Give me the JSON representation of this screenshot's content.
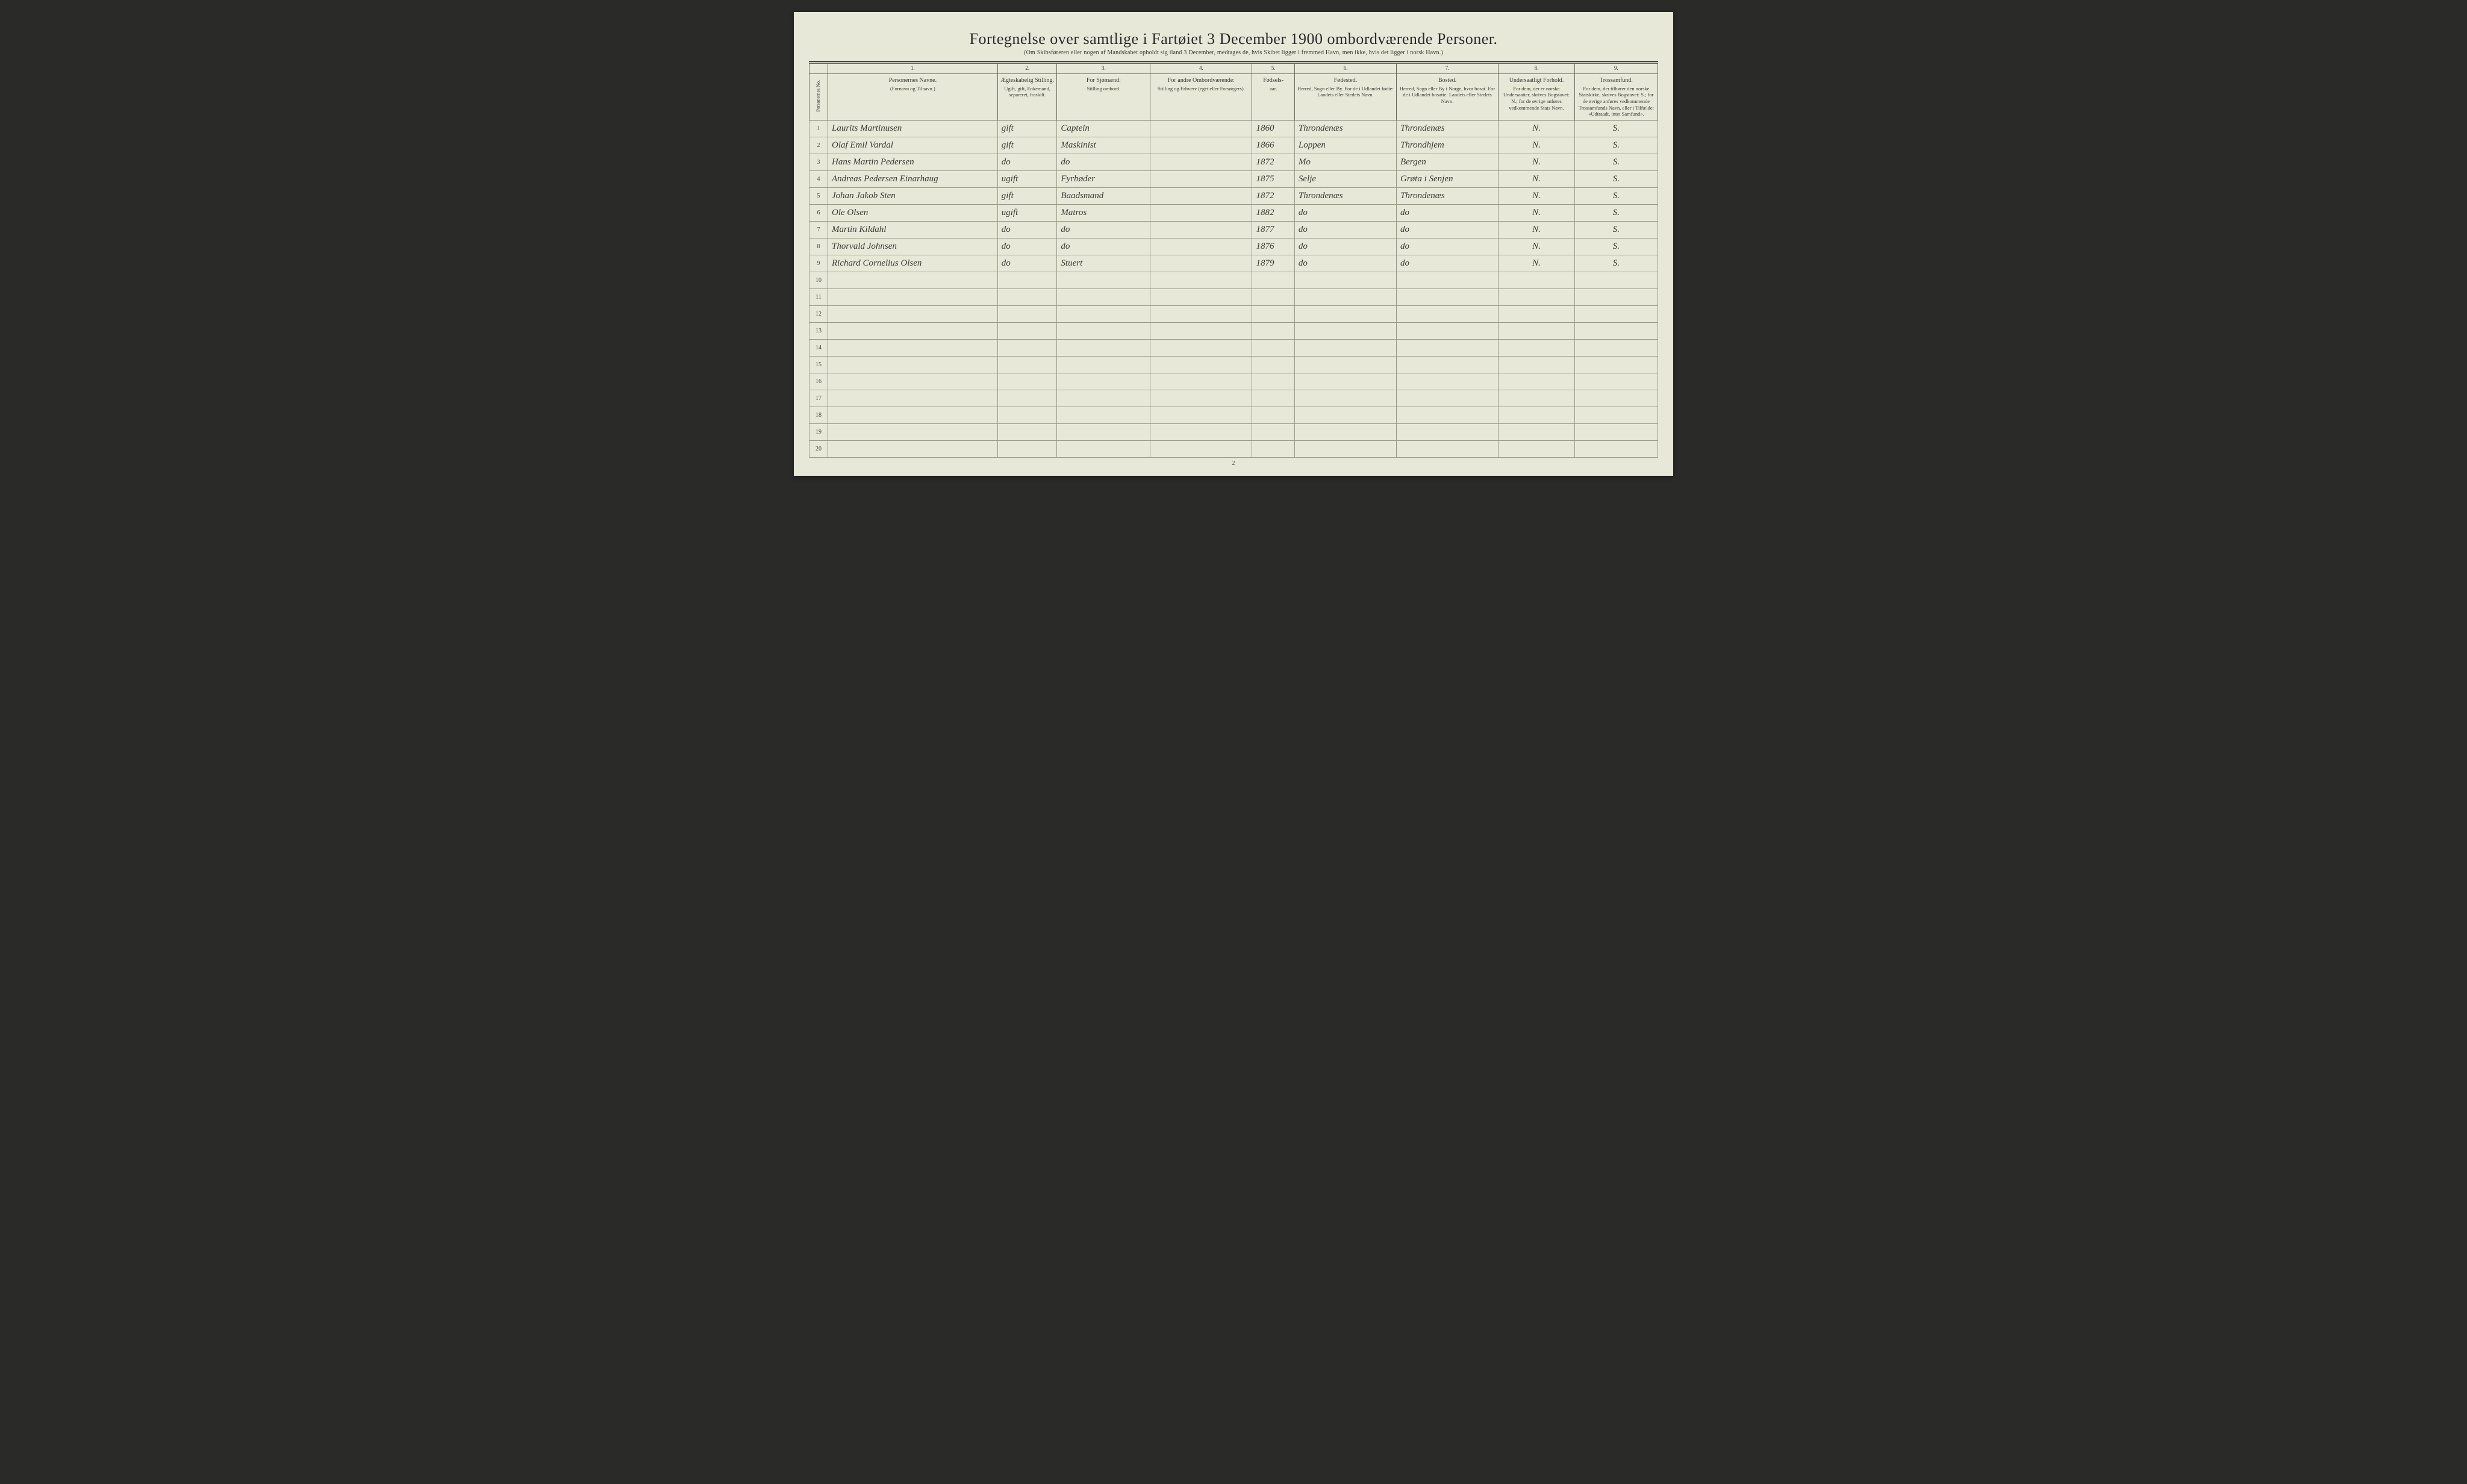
{
  "title": "Fortegnelse over samtlige i Fartøiet 3 December 1900 ombordværende Personer.",
  "subtitle": "(Om Skibsføreren eller nogen af Mandskabet opholdt sig iland 3 December, medtages de, hvis Skibet ligger i fremmed Havn, men ikke, hvis det ligger i norsk Havn.)",
  "page_number": "2",
  "columns": {
    "num_label": "Personernes No.",
    "c1": {
      "num": "1.",
      "main": "Personernes Navne.",
      "sub": "(Fornavn og Tilnavn.)"
    },
    "c2": {
      "num": "2.",
      "main": "Ægteskabelig Stilling.",
      "sub": "Ugift, gift, Enkemand, separeret, fraskilt."
    },
    "c3": {
      "num": "3.",
      "main": "For Sjømænd:",
      "sub": "Stilling ombord."
    },
    "c4": {
      "num": "4.",
      "main": "For andre Ombordværende:",
      "sub": "Stilling og Erhverv (eget eller Forsørgers)."
    },
    "c5": {
      "num": "5.",
      "main": "Fødsels-",
      "sub": "aar."
    },
    "c6": {
      "num": "6.",
      "main": "Fødested.",
      "sub": "Herred, Sogn eller By. For de i Udlandet fødte: Landets eller Stedets Navn."
    },
    "c7": {
      "num": "7.",
      "main": "Bosted.",
      "sub": "Herred, Sogn eller By i Norge, hvor bosat. For de i Udlandet bosatte: Landets eller Stedets Navn."
    },
    "c8": {
      "num": "8.",
      "main": "Undersaatligt Forhold.",
      "sub": "For dem, der er norske Undersaatter, skrives Bogstavet: N.; for de øvrige anføres vedkommende Stats Navn."
    },
    "c9": {
      "num": "9.",
      "main": "Trossamfund.",
      "sub": "For dem, der tilhører den norske Statskirke, skrives Bogstavet: S.; for de øvrige anføres vedkommende Trossamfunds Navn, eller i Tilfælde: «Udtraadt, intet Samfund»."
    }
  },
  "rows": [
    {
      "n": "1",
      "name": "Laurits Martinusen",
      "marital": "gift",
      "seaman": "Captein",
      "other": "",
      "birth": "1860",
      "birthplace": "Throndenæs",
      "residence": "Throndenæs",
      "subject": "N.",
      "religion": "S."
    },
    {
      "n": "2",
      "name": "Olaf Emil Vardal",
      "marital": "gift",
      "seaman": "Maskinist",
      "other": "",
      "birth": "1866",
      "birthplace": "Loppen",
      "residence": "Throndhjem",
      "subject": "N.",
      "religion": "S."
    },
    {
      "n": "3",
      "name": "Hans Martin Pedersen",
      "marital": "do",
      "seaman": "do",
      "other": "",
      "birth": "1872",
      "birthplace": "Mo",
      "residence": "Bergen",
      "subject": "N.",
      "religion": "S."
    },
    {
      "n": "4",
      "name": "Andreas Pedersen Einarhaug",
      "marital": "ugift",
      "seaman": "Fyrbøder",
      "other": "",
      "birth": "1875",
      "birthplace": "Selje",
      "residence": "Grøta i Senjen",
      "subject": "N.",
      "religion": "S."
    },
    {
      "n": "5",
      "name": "Johan Jakob Sten",
      "marital": "gift",
      "seaman": "Baadsmand",
      "other": "",
      "birth": "1872",
      "birthplace": "Throndenæs",
      "residence": "Throndenæs",
      "subject": "N.",
      "religion": "S."
    },
    {
      "n": "6",
      "name": "Ole Olsen",
      "marital": "ugift",
      "seaman": "Matros",
      "other": "",
      "birth": "1882",
      "birthplace": "do",
      "residence": "do",
      "subject": "N.",
      "religion": "S."
    },
    {
      "n": "7",
      "name": "Martin Kildahl",
      "marital": "do",
      "seaman": "do",
      "other": "",
      "birth": "1877",
      "birthplace": "do",
      "residence": "do",
      "subject": "N.",
      "religion": "S."
    },
    {
      "n": "8",
      "name": "Thorvald Johnsen",
      "marital": "do",
      "seaman": "do",
      "other": "",
      "birth": "1876",
      "birthplace": "do",
      "residence": "do",
      "subject": "N.",
      "religion": "S."
    },
    {
      "n": "9",
      "name": "Richard Cornelius Olsen",
      "marital": "do",
      "seaman": "Stuert",
      "other": "",
      "birth": "1879",
      "birthplace": "do",
      "residence": "do",
      "subject": "N.",
      "religion": "S."
    }
  ],
  "empty_rows": [
    "10",
    "11",
    "12",
    "13",
    "14",
    "15",
    "16",
    "17",
    "18",
    "19",
    "20"
  ],
  "colors": {
    "page_bg": "#e8e8d8",
    "ink": "#3a3a36",
    "rule": "#4a4a4a",
    "grid": "#9a9a88"
  }
}
